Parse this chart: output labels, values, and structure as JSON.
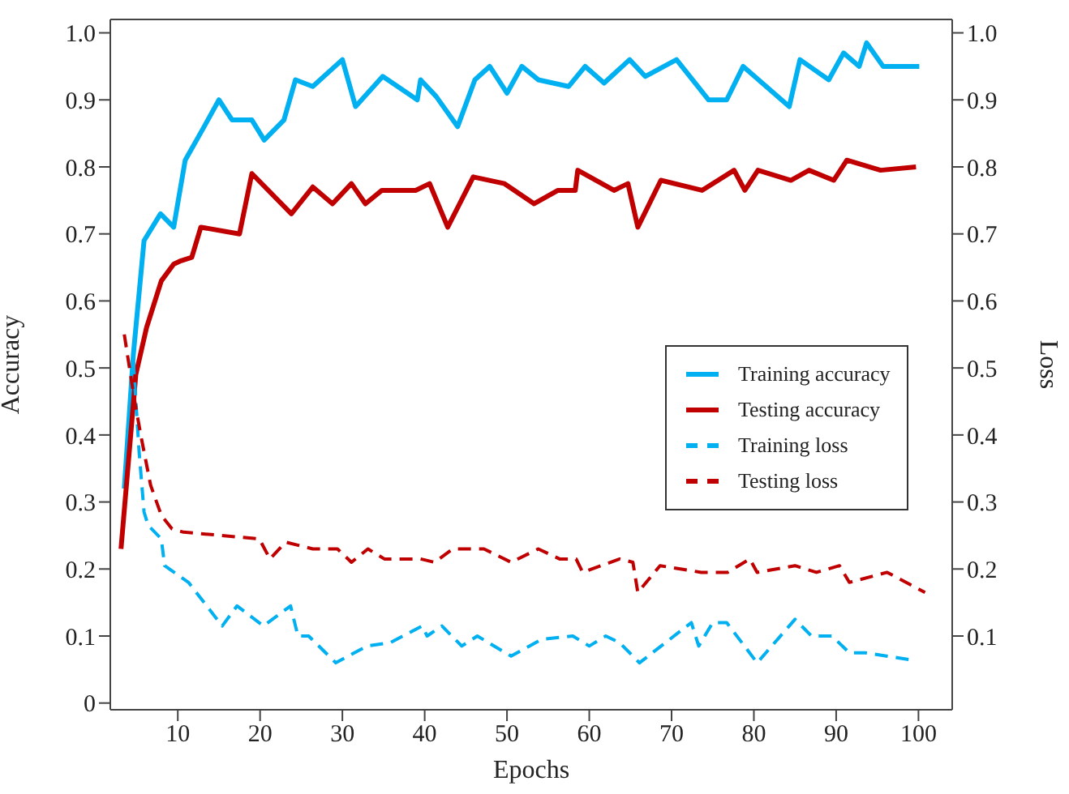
{
  "chart_data": {
    "type": "line",
    "xlabel": "Epochs",
    "ylabel": "Accuracy",
    "y2label": "Loss",
    "xlim": [
      1.8,
      104.1
    ],
    "xticks": [
      10,
      20,
      30,
      40,
      50,
      60,
      70,
      80,
      90,
      100
    ],
    "ylim": [
      -0.01,
      1.02
    ],
    "yticks": [
      0,
      0.1,
      0.2,
      0.3,
      0.4,
      0.5,
      0.6,
      0.7,
      0.8,
      0.9,
      {
        "value": 1,
        "label": "1.0"
      }
    ],
    "y2lim": [
      -0.01,
      1.02
    ],
    "y2ticks": [
      0.1,
      0.2,
      0.3,
      0.4,
      0.5,
      0.6,
      0.7,
      0.8,
      0.9,
      {
        "value": 1,
        "label": "1.0"
      }
    ],
    "legend": "right",
    "marker": "none",
    "series": [
      {
        "name": "Training accuracy",
        "color": "#00b0f0",
        "line_style": "solid",
        "x": [
          3.5,
          4.6,
          5.9,
          7.9,
          9.5,
          10.9,
          13.2,
          15,
          16.6,
          19,
          20.5,
          22.9,
          24.3,
          26.4,
          30,
          31.6,
          34.9,
          39.1,
          39.5,
          41.4,
          44,
          46.1,
          47.9,
          50,
          51.8,
          53.8,
          57.5,
          59.5,
          61.8,
          64.9,
          66.8,
          70.6,
          74.5,
          76.7,
          78.7,
          84.3,
          85.6,
          89.1,
          90.9,
          92.8,
          93.7,
          95.7,
          100.1
        ],
        "values": [
          0.32,
          0.52,
          0.69,
          0.73,
          0.71,
          0.81,
          0.86,
          0.9,
          0.87,
          0.87,
          0.84,
          0.87,
          0.93,
          0.92,
          0.96,
          0.89,
          0.935,
          0.9,
          0.93,
          0.905,
          0.86,
          0.93,
          0.95,
          0.91,
          0.95,
          0.93,
          0.92,
          0.95,
          0.925,
          0.96,
          0.935,
          0.96,
          0.9,
          0.9,
          0.95,
          0.89,
          0.96,
          0.93,
          0.97,
          0.95,
          0.985,
          0.95,
          0.95
        ]
      },
      {
        "name": "Testing accuracy",
        "color": "#c00000",
        "line_style": "solid",
        "x": [
          3.1,
          4.9,
          6.2,
          8,
          9.5,
          10.4,
          11.7,
          12.8,
          17.5,
          19,
          23.8,
          26.4,
          28.8,
          31.1,
          32.8,
          34.8,
          38.9,
          40.6,
          42.8,
          45.9,
          49.7,
          53.3,
          56.2,
          58.3,
          58.6,
          63,
          64.7,
          65.9,
          68.7,
          73.7,
          77.6,
          78.9,
          80.5,
          84.5,
          86.7,
          89.7,
          91.3,
          95.4,
          99.7
        ],
        "values": [
          0.23,
          0.49,
          0.56,
          0.63,
          0.655,
          0.66,
          0.665,
          0.71,
          0.7,
          0.79,
          0.73,
          0.77,
          0.745,
          0.775,
          0.745,
          0.765,
          0.765,
          0.775,
          0.71,
          0.785,
          0.775,
          0.745,
          0.765,
          0.765,
          0.795,
          0.765,
          0.775,
          0.71,
          0.78,
          0.765,
          0.795,
          0.765,
          0.795,
          0.78,
          0.795,
          0.78,
          0.81,
          0.795,
          0.8
        ]
      },
      {
        "name": "Training loss",
        "color": "#00b0f0",
        "line_style": "dashed",
        "axis": "y2",
        "x": [
          4.6,
          5.3,
          5.9,
          6.4,
          8,
          8.4,
          11.3,
          15.4,
          17.2,
          20.4,
          23.7,
          24.6,
          25.9,
          29.2,
          33,
          35.8,
          39.7,
          40.3,
          42.1,
          44.5,
          46.4,
          50.5,
          54.2,
          58,
          60,
          62,
          63.7,
          66.1,
          72.4,
          73.3,
          75,
          76.7,
          80.4,
          85,
          87,
          89.5,
          91.6,
          93.5,
          98.8
        ],
        "values": [
          0.51,
          0.375,
          0.285,
          0.265,
          0.245,
          0.205,
          0.18,
          0.115,
          0.145,
          0.115,
          0.145,
          0.1,
          0.1,
          0.06,
          0.085,
          0.09,
          0.115,
          0.1,
          0.115,
          0.085,
          0.1,
          0.07,
          0.095,
          0.1,
          0.085,
          0.1,
          0.09,
          0.06,
          0.12,
          0.085,
          0.12,
          0.12,
          0.06,
          0.125,
          0.1,
          0.1,
          0.075,
          0.075,
          0.065
        ]
      },
      {
        "name": "Testing loss",
        "color": "#c00000",
        "line_style": "dashed",
        "axis": "y2",
        "x": [
          3.5,
          4.7,
          5.5,
          6.7,
          8,
          9.3,
          10.7,
          19.9,
          21.2,
          23.1,
          26.4,
          29.4,
          31.1,
          33.1,
          35.1,
          39.5,
          41.2,
          43.4,
          47.2,
          50.5,
          53.8,
          56.4,
          58.4,
          59.2,
          63.7,
          65.3,
          65.9,
          68.6,
          73.6,
          76.8,
          79.5,
          80.4,
          85,
          87.6,
          90.4,
          91.6,
          96.2,
          100.8
        ],
        "values": [
          0.55,
          0.455,
          0.4,
          0.325,
          0.28,
          0.26,
          0.255,
          0.245,
          0.215,
          0.24,
          0.23,
          0.23,
          0.21,
          0.23,
          0.215,
          0.215,
          0.21,
          0.23,
          0.23,
          0.21,
          0.23,
          0.215,
          0.215,
          0.195,
          0.215,
          0.21,
          0.165,
          0.205,
          0.195,
          0.195,
          0.215,
          0.195,
          0.205,
          0.195,
          0.205,
          0.18,
          0.195,
          0.165
        ]
      }
    ]
  }
}
